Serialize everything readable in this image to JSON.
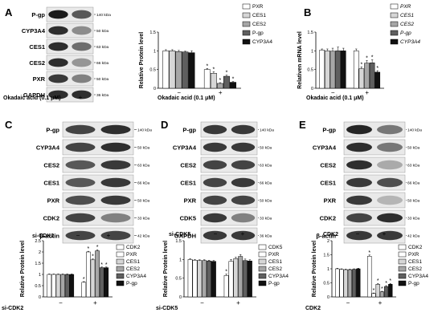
{
  "colors": {
    "c_white": "#ffffff",
    "c_lgray": "#d6d6d6",
    "c_mgray": "#a6a6a6",
    "c_dgray": "#5f5f5f",
    "c_black": "#111111",
    "band": "#1a1a1a"
  },
  "panels": {
    "A": {
      "letter": "A",
      "blot_labels": [
        "P-gp",
        "CYP3A4",
        "CES1",
        "CES2",
        "PXR",
        "GAPDH"
      ],
      "kda": [
        "140 kDa",
        "50 kDa",
        "63 kDa",
        "66 kDa",
        "50 kDa",
        "36 kDa"
      ],
      "treatment": "Okadaic acid (0.1 μM)",
      "lanes": [
        "−",
        "+"
      ]
    },
    "B": {
      "letter": "B"
    },
    "C": {
      "letter": "C",
      "blot_labels": [
        "P-gp",
        "CYP3A4",
        "CES2",
        "CES1",
        "PXR",
        "CDK2",
        "β-actin"
      ],
      "kda": [
        "140 kDa",
        "50 kDa",
        "63 kDa",
        "66 kDa",
        "50 kDa",
        "33 kDa",
        "42 kDa"
      ],
      "treatment": "si-CDK2",
      "lanes": [
        "−",
        "+"
      ]
    },
    "D": {
      "letter": "D",
      "blot_labels": [
        "P-gp",
        "CYP3A4",
        "CES2",
        "CES1",
        "PXR",
        "CDK5",
        "GAPDH"
      ],
      "kda": [
        "140 kDa",
        "50 kDa",
        "63 kDa",
        "66 kDa",
        "50 kDa",
        "33 kDa",
        "36 kDa"
      ],
      "treatment": "si-CDK5",
      "lanes": [
        "−",
        "+"
      ]
    },
    "E": {
      "letter": "E",
      "blot_labels": [
        "P-gp",
        "CYP3A4",
        "CES2",
        "CES1",
        "PXR",
        "CDK2",
        "β-actin"
      ],
      "kda": [
        "140 kDa",
        "50 kDa",
        "63 kDa",
        "66 kDa",
        "50 kDa",
        "33 kDa",
        "42 kDa"
      ],
      "treatment": "CDK2",
      "lanes": [
        "−",
        "+"
      ]
    }
  },
  "chart_data": [
    {
      "id": "A-chart",
      "type": "bar",
      "ylabel": "Relative Protein level",
      "ylim": [
        0,
        1.5
      ],
      "yticks": [
        0,
        0.5,
        1,
        1.5
      ],
      "group_labels": [
        "−",
        "+"
      ],
      "treatment": "Okadaic acid (0.1 μM)",
      "series": [
        {
          "name": "PXR",
          "style": "white",
          "values": [
            1.0,
            0.5
          ],
          "err": [
            0.03,
            0.03
          ],
          "sig": [
            false,
            true
          ]
        },
        {
          "name": "CES1",
          "style": "lgray",
          "values": [
            1.0,
            0.4
          ],
          "err": [
            0.03,
            0.04
          ],
          "sig": [
            false,
            true
          ]
        },
        {
          "name": "CES2",
          "style": "mgray",
          "values": [
            0.98,
            0.13
          ],
          "err": [
            0.03,
            0.02
          ],
          "sig": [
            false,
            true
          ]
        },
        {
          "name": "P-gp",
          "style": "dgray",
          "values": [
            0.97,
            0.32
          ],
          "err": [
            0.02,
            0.03
          ],
          "sig": [
            false,
            true
          ]
        },
        {
          "name": "CYP3A4",
          "style": "black",
          "values": [
            0.95,
            0.16
          ],
          "err": [
            0.05,
            0.02
          ],
          "sig": [
            false,
            true
          ]
        }
      ]
    },
    {
      "id": "B-chart",
      "type": "bar",
      "ylabel": "Relativen mRNA level",
      "ylim": [
        0,
        1.5
      ],
      "yticks": [
        0,
        0.5,
        1,
        1.5
      ],
      "group_labels": [
        "−",
        "+"
      ],
      "treatment": "Okadaic acid (0.1 μM)",
      "series": [
        {
          "name": "PXR",
          "style": "white",
          "values": [
            1.02,
            1.0
          ],
          "err": [
            0.03,
            0.05
          ],
          "sig": [
            false,
            false
          ]
        },
        {
          "name": "CES1",
          "style": "lgray",
          "values": [
            1.0,
            0.52
          ],
          "err": [
            0.05,
            0.05
          ],
          "sig": [
            false,
            true
          ]
        },
        {
          "name": "CES2",
          "style": "mgray",
          "values": [
            0.99,
            0.67
          ],
          "err": [
            0.08,
            0.07
          ],
          "sig": [
            false,
            true
          ]
        },
        {
          "name": "P-gp",
          "style": "dgray",
          "values": [
            1.0,
            0.68
          ],
          "err": [
            0.1,
            0.08
          ],
          "sig": [
            false,
            true
          ]
        },
        {
          "name": "CYP3A4",
          "style": "black",
          "values": [
            1.0,
            0.43
          ],
          "err": [
            0.07,
            0.04
          ],
          "sig": [
            false,
            true
          ]
        }
      ]
    },
    {
      "id": "C-chart",
      "type": "bar",
      "ylabel": "Relative Protein level",
      "ylim": [
        0,
        2.5
      ],
      "yticks": [
        0,
        0.5,
        1,
        1.5,
        2,
        2.5
      ],
      "group_labels": [
        "−",
        "+"
      ],
      "treatment": "si-CDK2",
      "series": [
        {
          "name": "CDK2",
          "style": "white",
          "values": [
            1.0,
            0.65
          ],
          "err": [
            0.02,
            0.03
          ],
          "sig": [
            false,
            true
          ]
        },
        {
          "name": "PXR",
          "style": "white",
          "values": [
            1.0,
            2.0
          ],
          "err": [
            0.02,
            0.03
          ],
          "sig": [
            false,
            true
          ]
        },
        {
          "name": "CES1",
          "style": "lgray",
          "values": [
            1.0,
            1.65
          ],
          "err": [
            0.02,
            0.04
          ],
          "sig": [
            false,
            true
          ]
        },
        {
          "name": "CES2",
          "style": "mgray",
          "values": [
            1.0,
            2.05
          ],
          "err": [
            0.02,
            0.05
          ],
          "sig": [
            false,
            true
          ]
        },
        {
          "name": "CYP3A4",
          "style": "dgray",
          "values": [
            1.0,
            1.3
          ],
          "err": [
            0.02,
            0.03
          ],
          "sig": [
            false,
            true
          ]
        },
        {
          "name": "P-gp",
          "style": "black",
          "values": [
            1.0,
            1.3
          ],
          "err": [
            0.02,
            0.03
          ],
          "sig": [
            false,
            true
          ]
        }
      ]
    },
    {
      "id": "D-chart",
      "type": "bar",
      "ylabel": "Relative Protein level",
      "ylim": [
        0,
        1.5
      ],
      "yticks": [
        0,
        0.5,
        1,
        1.5
      ],
      "group_labels": [
        "−",
        "+"
      ],
      "treatment": "si-CDK5",
      "series": [
        {
          "name": "CDK5",
          "style": "white",
          "values": [
            1.0,
            0.57
          ],
          "err": [
            0.02,
            0.04
          ],
          "sig": [
            false,
            true
          ]
        },
        {
          "name": "PXR",
          "style": "white",
          "values": [
            0.98,
            0.95
          ],
          "err": [
            0.02,
            0.05
          ],
          "sig": [
            false,
            false
          ]
        },
        {
          "name": "CES1",
          "style": "lgray",
          "values": [
            0.97,
            1.02
          ],
          "err": [
            0.02,
            0.04
          ],
          "sig": [
            false,
            false
          ]
        },
        {
          "name": "CES2",
          "style": "mgray",
          "values": [
            0.97,
            1.08
          ],
          "err": [
            0.02,
            0.05
          ],
          "sig": [
            false,
            false
          ]
        },
        {
          "name": "CYP3A4",
          "style": "dgray",
          "values": [
            0.96,
            0.97
          ],
          "err": [
            0.02,
            0.04
          ],
          "sig": [
            false,
            false
          ]
        },
        {
          "name": "P-gp",
          "style": "black",
          "values": [
            0.95,
            0.96
          ],
          "err": [
            0.02,
            0.03
          ],
          "sig": [
            false,
            false
          ]
        }
      ]
    },
    {
      "id": "E-chart",
      "type": "bar",
      "ylabel": "Relative Protein level",
      "ylim": [
        0,
        2.0
      ],
      "yticks": [
        0,
        0.5,
        1,
        1.5,
        2
      ],
      "group_labels": [
        "−",
        "+"
      ],
      "treatment": "CDK2",
      "series": [
        {
          "name": "CDK2",
          "style": "white",
          "values": [
            1.0,
            1.45
          ],
          "err": [
            0.02,
            0.04
          ],
          "sig": [
            false,
            true
          ]
        },
        {
          "name": "PXR",
          "style": "white",
          "values": [
            0.98,
            0.12
          ],
          "err": [
            0.02,
            0.02
          ],
          "sig": [
            false,
            true
          ]
        },
        {
          "name": "CES1",
          "style": "lgray",
          "values": [
            0.97,
            0.45
          ],
          "err": [
            0.02,
            0.03
          ],
          "sig": [
            false,
            true
          ]
        },
        {
          "name": "CES2",
          "style": "mgray",
          "values": [
            0.97,
            0.18
          ],
          "err": [
            0.02,
            0.02
          ],
          "sig": [
            false,
            true
          ]
        },
        {
          "name": "CYP3A4",
          "style": "dgray",
          "values": [
            0.98,
            0.37
          ],
          "err": [
            0.02,
            0.03
          ],
          "sig": [
            false,
            true
          ]
        },
        {
          "name": "P-gp",
          "style": "black",
          "values": [
            1.0,
            0.45
          ],
          "err": [
            0.02,
            0.03
          ],
          "sig": [
            false,
            true
          ]
        }
      ]
    }
  ]
}
